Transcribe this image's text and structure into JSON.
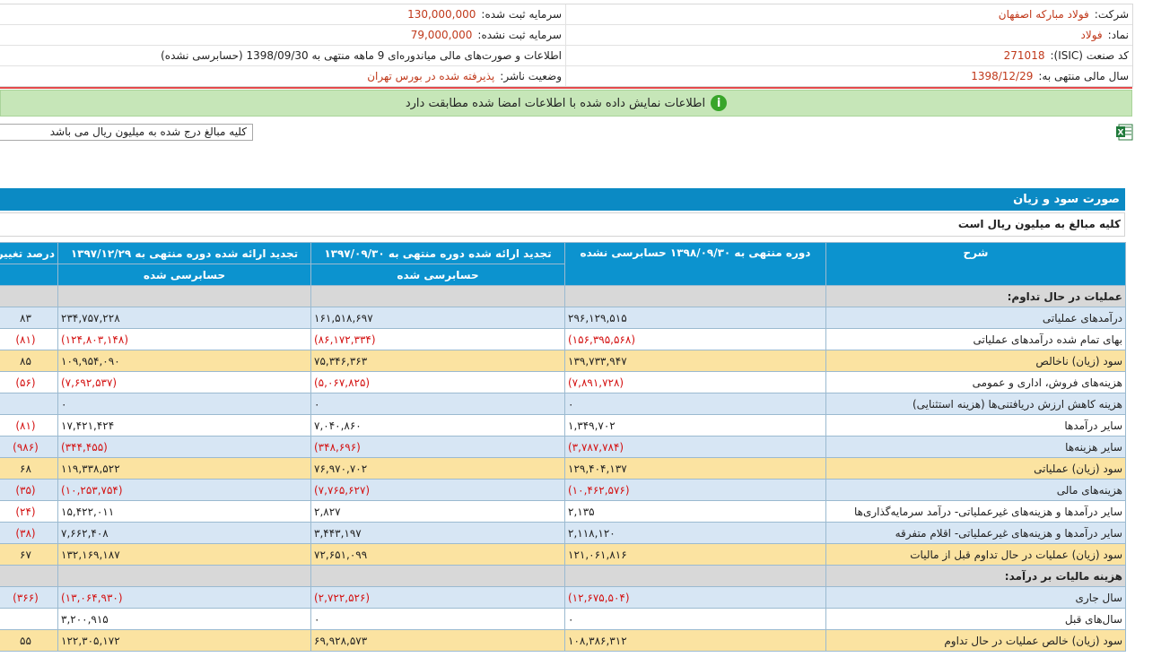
{
  "company_info": {
    "rows": [
      {
        "right_label": "شرکت:",
        "right_value": "فولاد مبارکه اصفهان",
        "left_label": "سرمایه ثبت شده:",
        "left_value": "130,000,000"
      },
      {
        "right_label": "نماد:",
        "right_value": "فولاد",
        "left_label": "سرمایه ثبت نشده:",
        "left_value": "79,000,000"
      },
      {
        "right_label": "کد صنعت (ISIC):",
        "right_value": "271018",
        "left_label": "اطلاعات و صورت‌های مالی میاندوره‌ای 9 ماهه منتهی به 1398/09/30 (حسابرسی نشده)",
        "left_value": ""
      },
      {
        "right_label": "سال مالی منتهی به:",
        "right_value": "1398/12/29",
        "left_label": "وضعیت ناشر:",
        "left_value": "پذیرفته شده در بورس تهران"
      }
    ]
  },
  "banner": {
    "text": "اطلاعات نمایش داده شده با اطلاعات امضا شده مطابقت دارد",
    "icon": "info-icon"
  },
  "unit_note": "کلیه مبالغ درج شده به میلیون ریال می باشد",
  "excel_icon": "excel-icon",
  "statement": {
    "title": "صورت سود و زیان",
    "subtitle": "کلیه مبالغ به میلیون ریال است",
    "headers": {
      "desc": "شرح",
      "col1": "دوره منتهی به ۱۳۹۸/۰۹/۳۰ حسابرسی نشده",
      "col2": "تجدید ارائه شده دوره منتهی به ۱۳۹۷/۰۹/۳۰",
      "col2_sub": "حسابرسی شده",
      "col3": "تجدید ارائه شده دوره منتهی به ۱۳۹۷/۱۲/۲۹",
      "col3_sub": "حسابرسی شده",
      "col4": "درصد تغییر"
    },
    "rows": [
      {
        "type": "sec",
        "desc": "عملیات در حال تداوم:",
        "c1": "",
        "c2": "",
        "c3": "",
        "c4": ""
      },
      {
        "type": "blue",
        "desc": "درآمدهای عملیاتی",
        "c1": "۲۹۶,۱۲۹,۵۱۵",
        "c2": "۱۶۱,۵۱۸,۶۹۷",
        "c3": "۲۳۴,۷۵۷,۲۲۸",
        "c4": "۸۳"
      },
      {
        "type": "plain",
        "desc": "بهای تمام شده درآمدهای عملیاتی",
        "c1": "(۱۵۶,۳۹۵,۵۶۸)",
        "c2": "(۸۶,۱۷۲,۳۳۴)",
        "c3": "(۱۲۴,۸۰۳,۱۴۸)",
        "c4": "(۸۱)"
      },
      {
        "type": "yellow",
        "desc": "سود (زیان) ناخالص",
        "c1": "۱۳۹,۷۳۳,۹۴۷",
        "c2": "۷۵,۳۴۶,۳۶۳",
        "c3": "۱۰۹,۹۵۴,۰۹۰",
        "c4": "۸۵"
      },
      {
        "type": "plain",
        "desc": "هزینه‌های فروش، اداری و عمومی",
        "c1": "(۷,۸۹۱,۷۲۸)",
        "c2": "(۵,۰۶۷,۸۲۵)",
        "c3": "(۷,۶۹۲,۵۳۷)",
        "c4": "(۵۶)"
      },
      {
        "type": "blue",
        "desc": "هزینه کاهش ارزش دریافتنی‌ها (هزینه استثنایی)",
        "c1": "۰",
        "c2": "۰",
        "c3": "۰",
        "c4": ""
      },
      {
        "type": "plain",
        "desc": "سایر درآمدها",
        "c1": "۱,۳۴۹,۷۰۲",
        "c2": "۷,۰۴۰,۸۶۰",
        "c3": "۱۷,۴۲۱,۴۲۴",
        "c4": "(۸۱)"
      },
      {
        "type": "blue",
        "desc": "سایر هزینه‌ها",
        "c1": "(۳,۷۸۷,۷۸۴)",
        "c2": "(۳۴۸,۶۹۶)",
        "c3": "(۳۴۴,۴۵۵)",
        "c4": "(۹۸۶)"
      },
      {
        "type": "yellow",
        "desc": "سود (زیان) عملیاتی",
        "c1": "۱۲۹,۴۰۴,۱۳۷",
        "c2": "۷۶,۹۷۰,۷۰۲",
        "c3": "۱۱۹,۳۳۸,۵۲۲",
        "c4": "۶۸"
      },
      {
        "type": "blue",
        "desc": "هزینه‌های مالی",
        "c1": "(۱۰,۴۶۲,۵۷۶)",
        "c2": "(۷,۷۶۵,۶۲۷)",
        "c3": "(۱۰,۲۵۳,۷۵۴)",
        "c4": "(۳۵)"
      },
      {
        "type": "plain",
        "desc": "سایر درآمدها و هزینه‌های غیرعملیاتی- درآمد سرمایه‌گذاری‌ها",
        "c1": "۲,۱۳۵",
        "c2": "۲,۸۲۷",
        "c3": "۱۵,۴۲۲,۰۱۱",
        "c4": "(۲۴)"
      },
      {
        "type": "blue",
        "desc": "سایر درآمدها و هزینه‌های غیرعملیاتی- اقلام متفرقه",
        "c1": "۲,۱۱۸,۱۲۰",
        "c2": "۳,۴۴۳,۱۹۷",
        "c3": "۷,۶۶۲,۴۰۸",
        "c4": "(۳۸)"
      },
      {
        "type": "yellow",
        "desc": "سود (زیان) عملیات در حال تداوم قبل از مالیات",
        "c1": "۱۲۱,۰۶۱,۸۱۶",
        "c2": "۷۲,۶۵۱,۰۹۹",
        "c3": "۱۳۲,۱۶۹,۱۸۷",
        "c4": "۶۷"
      },
      {
        "type": "sec",
        "desc": "هزینه مالیات بر درآمد:",
        "c1": "",
        "c2": "",
        "c3": "",
        "c4": ""
      },
      {
        "type": "blue",
        "desc": "سال جاری",
        "c1": "(۱۲,۶۷۵,۵۰۴)",
        "c2": "(۲,۷۲۲,۵۲۶)",
        "c3": "(۱۳,۰۶۴,۹۳۰)",
        "c4": "(۳۶۶)"
      },
      {
        "type": "plain",
        "desc": "سال‌های قبل",
        "c1": "۰",
        "c2": "۰",
        "c3": "۳,۲۰۰,۹۱۵",
        "c4": ""
      },
      {
        "type": "yellow",
        "desc": "سود (زیان) خالص عملیات در حال تداوم",
        "c1": "۱۰۸,۳۸۶,۳۱۲",
        "c2": "۶۹,۹۲۸,۵۷۳",
        "c3": "۱۲۲,۳۰۵,۱۷۲",
        "c4": "۵۵"
      }
    ]
  }
}
